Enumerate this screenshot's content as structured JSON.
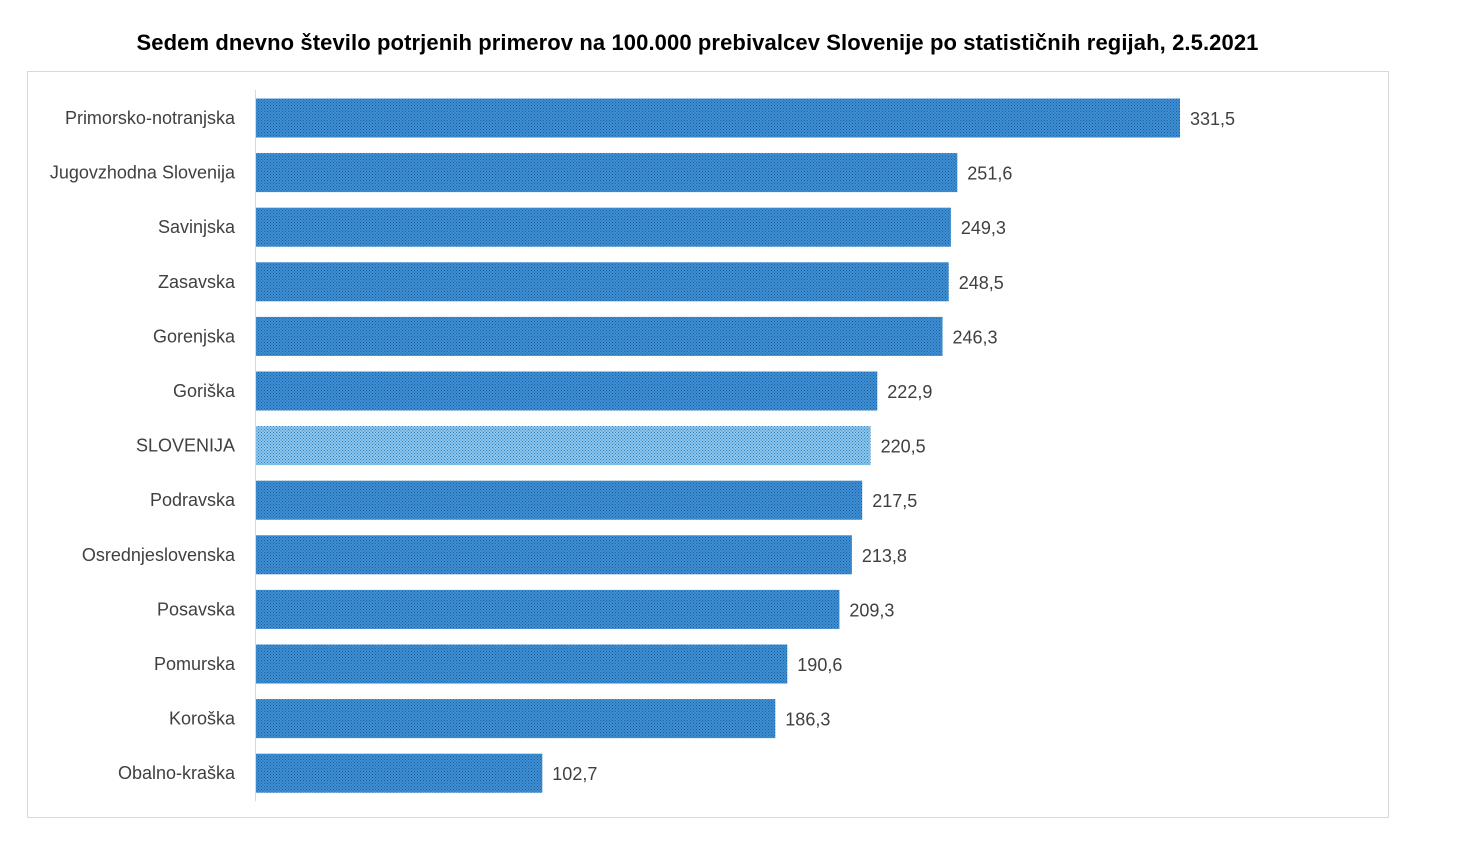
{
  "chart_data": {
    "type": "bar",
    "orientation": "horizontal",
    "title": "Sedem dnevno število potrjenih primerov na 100.000 prebivalcev Slovenije po statističnih regijah, 2.5.2021",
    "xlabel": "",
    "ylabel": "",
    "grid": false,
    "legend": false,
    "xlim": [
      0,
      331.5
    ],
    "categories": [
      "Primorsko-notranjska",
      "Jugovzhodna Slovenija",
      "Savinjska",
      "Zasavska",
      "Gorenjska",
      "Goriška",
      "SLOVENIJA",
      "Podravska",
      "Osrednjeslovenska",
      "Posavska",
      "Pomurska",
      "Koroška",
      "Obalno-kraška"
    ],
    "values": [
      331.5,
      251.6,
      249.3,
      248.5,
      246.3,
      222.9,
      220.5,
      217.5,
      213.8,
      209.3,
      190.6,
      186.3,
      102.7
    ],
    "data_labels": [
      "331,5",
      "251,6",
      "249,3",
      "248,5",
      "246,3",
      "222,9",
      "220,5",
      "217,5",
      "213,8",
      "209,3",
      "190,6",
      "186,3",
      "102,7"
    ],
    "highlight_category": "SLOVENIJA",
    "colors": {
      "bar": "#3d8fd6",
      "bar_dot": "#1f5e99",
      "highlight_bar": "#8ec6ec",
      "highlight_dot": "#2f7fc0",
      "axis": "#d9d9d9",
      "label": "#404040"
    }
  }
}
